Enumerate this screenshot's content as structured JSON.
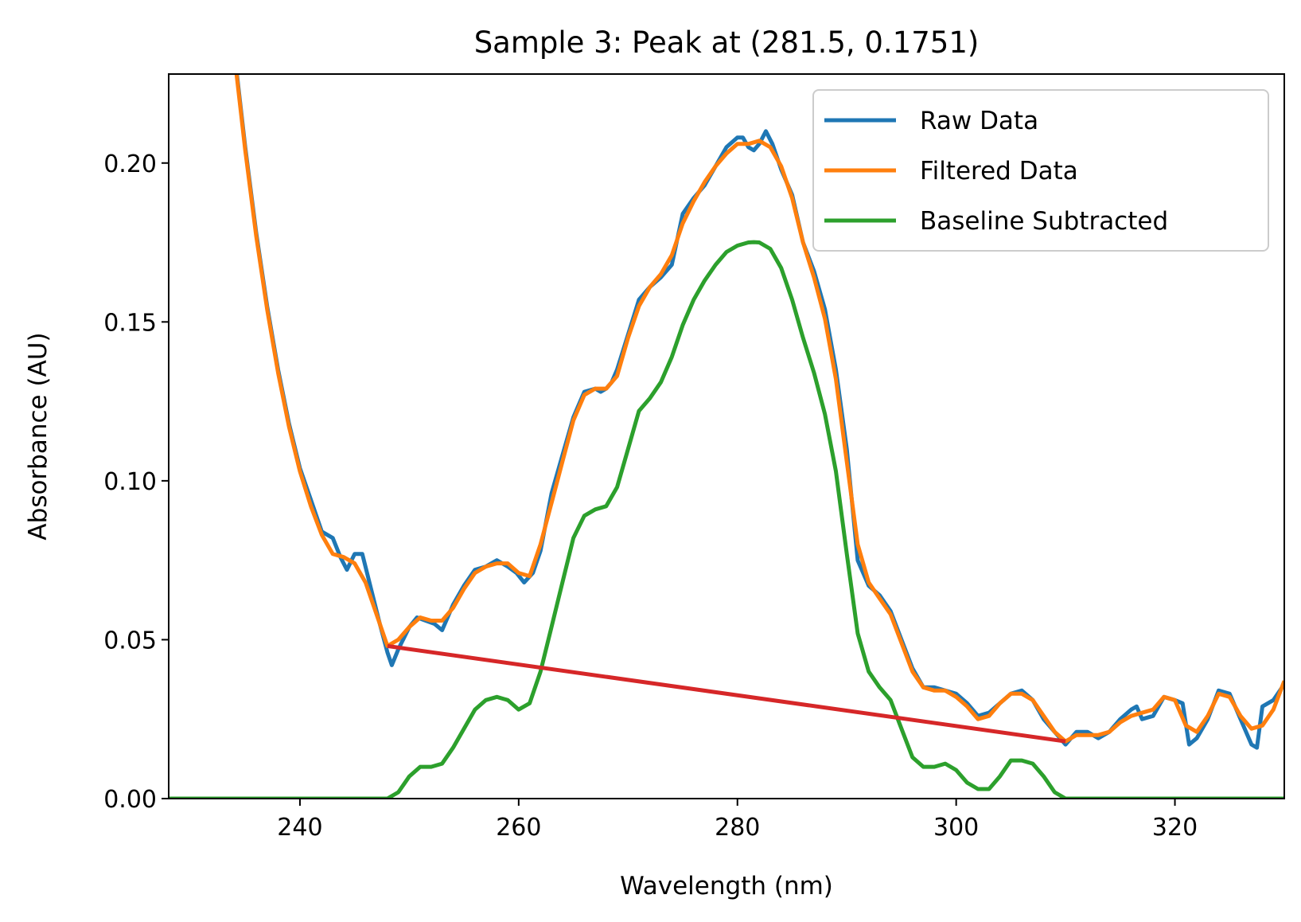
{
  "chart_data": {
    "type": "line",
    "title": "Sample 3: Peak at (281.5, 0.1751)",
    "xlabel": "Wavelength (nm)",
    "ylabel": "Absorbance (AU)",
    "xlim": [
      228,
      330
    ],
    "ylim": [
      0,
      0.228
    ],
    "xticks": [
      240,
      260,
      280,
      300,
      320
    ],
    "xtick_labels": [
      "240",
      "260",
      "280",
      "300",
      "320"
    ],
    "yticks": [
      0,
      0.05,
      0.1,
      0.15,
      0.2
    ],
    "ytick_labels": [
      "0.00",
      "0.05",
      "0.10",
      "0.15",
      "0.20"
    ],
    "grid": false,
    "legend_position": "top-right",
    "peak": {
      "x": 281.5,
      "y": 0.1751
    },
    "series": [
      {
        "name": "Raw Data",
        "color": "#1f77b4",
        "in_legend": true,
        "points": [
          [
            234,
            0.235
          ],
          [
            235,
            0.205
          ],
          [
            236,
            0.178
          ],
          [
            237,
            0.155
          ],
          [
            238,
            0.135
          ],
          [
            239,
            0.118
          ],
          [
            240,
            0.104
          ],
          [
            241,
            0.094
          ],
          [
            242,
            0.084
          ],
          [
            243,
            0.082
          ],
          [
            243.7,
            0.076
          ],
          [
            244.3,
            0.072
          ],
          [
            245,
            0.077
          ],
          [
            245.7,
            0.077
          ],
          [
            246.5,
            0.066
          ],
          [
            247.3,
            0.055
          ],
          [
            248,
            0.046
          ],
          [
            248.4,
            0.042
          ],
          [
            249,
            0.047
          ],
          [
            250,
            0.054
          ],
          [
            250.7,
            0.057
          ],
          [
            251.5,
            0.056
          ],
          [
            252.3,
            0.055
          ],
          [
            253,
            0.053
          ],
          [
            254,
            0.061
          ],
          [
            255,
            0.067
          ],
          [
            256,
            0.072
          ],
          [
            257,
            0.073
          ],
          [
            258,
            0.075
          ],
          [
            259,
            0.073
          ],
          [
            259.8,
            0.071
          ],
          [
            260.5,
            0.068
          ],
          [
            261.3,
            0.071
          ],
          [
            262,
            0.078
          ],
          [
            263,
            0.096
          ],
          [
            264,
            0.108
          ],
          [
            265,
            0.12
          ],
          [
            266,
            0.128
          ],
          [
            267,
            0.129
          ],
          [
            267.5,
            0.128
          ],
          [
            268,
            0.129
          ],
          [
            268.5,
            0.131
          ],
          [
            269,
            0.135
          ],
          [
            270,
            0.146
          ],
          [
            271,
            0.157
          ],
          [
            272,
            0.161
          ],
          [
            273,
            0.164
          ],
          [
            274,
            0.168
          ],
          [
            275,
            0.184
          ],
          [
            276,
            0.189
          ],
          [
            277,
            0.193
          ],
          [
            278,
            0.199
          ],
          [
            279,
            0.205
          ],
          [
            280,
            0.208
          ],
          [
            280.5,
            0.208
          ],
          [
            281,
            0.205
          ],
          [
            281.5,
            0.204
          ],
          [
            282,
            0.206
          ],
          [
            282.6,
            0.21
          ],
          [
            283.2,
            0.206
          ],
          [
            284,
            0.198
          ],
          [
            285,
            0.19
          ],
          [
            286,
            0.175
          ],
          [
            287,
            0.166
          ],
          [
            288,
            0.154
          ],
          [
            289,
            0.135
          ],
          [
            290,
            0.11
          ],
          [
            291,
            0.075
          ],
          [
            292,
            0.067
          ],
          [
            293,
            0.064
          ],
          [
            294,
            0.059
          ],
          [
            295,
            0.05
          ],
          [
            296,
            0.041
          ],
          [
            297,
            0.035
          ],
          [
            298,
            0.035
          ],
          [
            299,
            0.034
          ],
          [
            300,
            0.033
          ],
          [
            301,
            0.03
          ],
          [
            302,
            0.026
          ],
          [
            303,
            0.027
          ],
          [
            304,
            0.03
          ],
          [
            305,
            0.033
          ],
          [
            306,
            0.034
          ],
          [
            307,
            0.031
          ],
          [
            308,
            0.025
          ],
          [
            309,
            0.021
          ],
          [
            310,
            0.017
          ],
          [
            311,
            0.021
          ],
          [
            312,
            0.021
          ],
          [
            313,
            0.019
          ],
          [
            314,
            0.021
          ],
          [
            315,
            0.025
          ],
          [
            316,
            0.028
          ],
          [
            316.5,
            0.029
          ],
          [
            317,
            0.025
          ],
          [
            318,
            0.026
          ],
          [
            319,
            0.032
          ],
          [
            320,
            0.031
          ],
          [
            320.7,
            0.03
          ],
          [
            321.3,
            0.017
          ],
          [
            322,
            0.019
          ],
          [
            323,
            0.025
          ],
          [
            324,
            0.034
          ],
          [
            325,
            0.033
          ],
          [
            326,
            0.025
          ],
          [
            327,
            0.017
          ],
          [
            327.5,
            0.016
          ],
          [
            328,
            0.029
          ],
          [
            329,
            0.031
          ],
          [
            330,
            0.036
          ]
        ]
      },
      {
        "name": "Filtered Data",
        "color": "#ff7f0e",
        "in_legend": true,
        "points": [
          [
            234,
            0.234
          ],
          [
            235,
            0.204
          ],
          [
            236,
            0.177
          ],
          [
            237,
            0.154
          ],
          [
            238,
            0.134
          ],
          [
            239,
            0.117
          ],
          [
            240,
            0.103
          ],
          [
            241,
            0.092
          ],
          [
            242,
            0.083
          ],
          [
            243,
            0.077
          ],
          [
            244,
            0.076
          ],
          [
            245,
            0.074
          ],
          [
            246,
            0.068
          ],
          [
            247,
            0.058
          ],
          [
            248,
            0.048
          ],
          [
            249,
            0.05
          ],
          [
            250,
            0.054
          ],
          [
            251,
            0.057
          ],
          [
            252,
            0.056
          ],
          [
            253,
            0.056
          ],
          [
            254,
            0.06
          ],
          [
            255,
            0.066
          ],
          [
            256,
            0.071
          ],
          [
            257,
            0.073
          ],
          [
            258,
            0.074
          ],
          [
            259,
            0.074
          ],
          [
            260,
            0.071
          ],
          [
            261,
            0.07
          ],
          [
            262,
            0.08
          ],
          [
            263,
            0.093
          ],
          [
            264,
            0.106
          ],
          [
            265,
            0.119
          ],
          [
            266,
            0.127
          ],
          [
            267,
            0.129
          ],
          [
            268,
            0.129
          ],
          [
            269,
            0.133
          ],
          [
            270,
            0.145
          ],
          [
            271,
            0.155
          ],
          [
            272,
            0.161
          ],
          [
            273,
            0.165
          ],
          [
            274,
            0.171
          ],
          [
            275,
            0.181
          ],
          [
            276,
            0.188
          ],
          [
            277,
            0.194
          ],
          [
            278,
            0.199
          ],
          [
            279,
            0.203
          ],
          [
            280,
            0.206
          ],
          [
            281,
            0.206
          ],
          [
            282,
            0.207
          ],
          [
            283,
            0.205
          ],
          [
            284,
            0.199
          ],
          [
            285,
            0.189
          ],
          [
            286,
            0.175
          ],
          [
            287,
            0.164
          ],
          [
            288,
            0.151
          ],
          [
            289,
            0.132
          ],
          [
            290,
            0.106
          ],
          [
            291,
            0.08
          ],
          [
            292,
            0.068
          ],
          [
            293,
            0.063
          ],
          [
            294,
            0.058
          ],
          [
            295,
            0.049
          ],
          [
            296,
            0.04
          ],
          [
            297,
            0.035
          ],
          [
            298,
            0.034
          ],
          [
            299,
            0.034
          ],
          [
            300,
            0.032
          ],
          [
            301,
            0.029
          ],
          [
            302,
            0.025
          ],
          [
            303,
            0.026
          ],
          [
            304,
            0.03
          ],
          [
            305,
            0.033
          ],
          [
            306,
            0.033
          ],
          [
            307,
            0.031
          ],
          [
            308,
            0.026
          ],
          [
            309,
            0.021
          ],
          [
            310,
            0.018
          ],
          [
            311,
            0.02
          ],
          [
            312,
            0.02
          ],
          [
            313,
            0.02
          ],
          [
            314,
            0.021
          ],
          [
            315,
            0.024
          ],
          [
            316,
            0.026
          ],
          [
            317,
            0.027
          ],
          [
            318,
            0.028
          ],
          [
            319,
            0.032
          ],
          [
            320,
            0.031
          ],
          [
            321,
            0.023
          ],
          [
            322,
            0.021
          ],
          [
            323,
            0.026
          ],
          [
            324,
            0.033
          ],
          [
            325,
            0.032
          ],
          [
            326,
            0.026
          ],
          [
            327,
            0.022
          ],
          [
            328,
            0.023
          ],
          [
            329,
            0.028
          ],
          [
            330,
            0.037
          ]
        ]
      },
      {
        "name": "Baseline Subtracted",
        "color": "#2ca02c",
        "in_legend": true,
        "points": [
          [
            228,
            0
          ],
          [
            248,
            0
          ],
          [
            249,
            0.002
          ],
          [
            250,
            0.007
          ],
          [
            251,
            0.01
          ],
          [
            252,
            0.01
          ],
          [
            253,
            0.011
          ],
          [
            254,
            0.016
          ],
          [
            255,
            0.022
          ],
          [
            256,
            0.028
          ],
          [
            257,
            0.031
          ],
          [
            258,
            0.032
          ],
          [
            259,
            0.031
          ],
          [
            260,
            0.028
          ],
          [
            261,
            0.03
          ],
          [
            262,
            0.04
          ],
          [
            263,
            0.054
          ],
          [
            264,
            0.068
          ],
          [
            265,
            0.082
          ],
          [
            266,
            0.089
          ],
          [
            267,
            0.091
          ],
          [
            268,
            0.092
          ],
          [
            269,
            0.098
          ],
          [
            270,
            0.11
          ],
          [
            271,
            0.122
          ],
          [
            272,
            0.126
          ],
          [
            273,
            0.131
          ],
          [
            274,
            0.139
          ],
          [
            275,
            0.149
          ],
          [
            276,
            0.157
          ],
          [
            277,
            0.163
          ],
          [
            278,
            0.168
          ],
          [
            279,
            0.172
          ],
          [
            280,
            0.174
          ],
          [
            281,
            0.175
          ],
          [
            281.5,
            0.1751
          ],
          [
            282,
            0.175
          ],
          [
            283,
            0.173
          ],
          [
            284,
            0.167
          ],
          [
            285,
            0.157
          ],
          [
            286,
            0.145
          ],
          [
            287,
            0.134
          ],
          [
            288,
            0.121
          ],
          [
            289,
            0.103
          ],
          [
            290,
            0.077
          ],
          [
            291,
            0.052
          ],
          [
            292,
            0.04
          ],
          [
            293,
            0.035
          ],
          [
            294,
            0.031
          ],
          [
            295,
            0.022
          ],
          [
            296,
            0.013
          ],
          [
            297,
            0.01
          ],
          [
            298,
            0.01
          ],
          [
            299,
            0.011
          ],
          [
            300,
            0.009
          ],
          [
            301,
            0.005
          ],
          [
            302,
            0.003
          ],
          [
            303,
            0.003
          ],
          [
            304,
            0.007
          ],
          [
            305,
            0.012
          ],
          [
            306,
            0.012
          ],
          [
            307,
            0.011
          ],
          [
            308,
            0.007
          ],
          [
            309,
            0.002
          ],
          [
            310,
            0
          ],
          [
            330,
            0
          ]
        ]
      },
      {
        "name": "Baseline",
        "color": "#d62728",
        "in_legend": false,
        "points": [
          [
            248,
            0.048
          ],
          [
            310,
            0.018
          ]
        ]
      }
    ]
  }
}
